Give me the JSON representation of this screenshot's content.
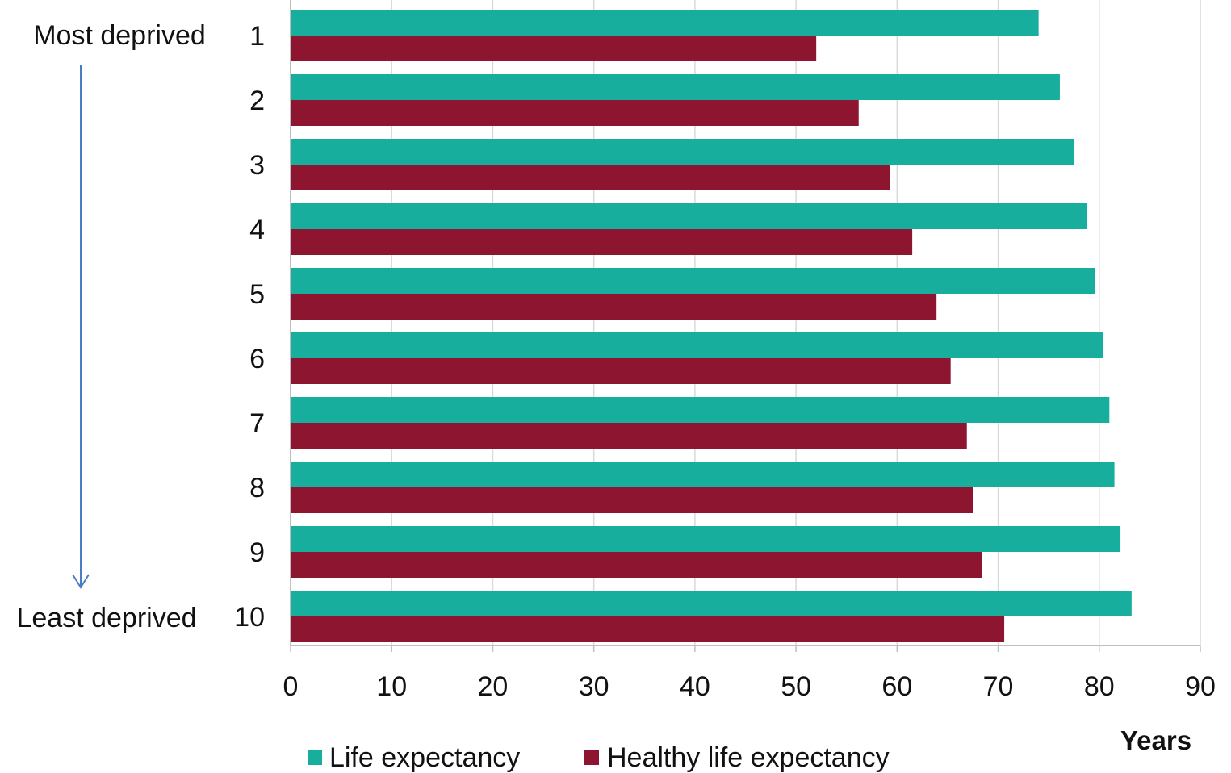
{
  "chart_data": {
    "type": "bar",
    "orientation": "horizontal",
    "categories": [
      "1",
      "2",
      "3",
      "4",
      "5",
      "6",
      "7",
      "8",
      "9",
      "10"
    ],
    "series": [
      {
        "name": "Life expectancy",
        "color": "#17ae9d",
        "values": [
          74.0,
          76.1,
          77.5,
          78.8,
          79.6,
          80.4,
          81.0,
          81.5,
          82.1,
          83.2
        ]
      },
      {
        "name": "Healthy life expectancy",
        "color": "#8e1530",
        "values": [
          52.0,
          56.2,
          59.3,
          61.5,
          63.9,
          65.3,
          66.9,
          67.5,
          68.4,
          70.6
        ]
      }
    ],
    "xlabel": "Years",
    "xlim": [
      0,
      90
    ],
    "xticks": [
      0,
      10,
      20,
      30,
      40,
      50,
      60,
      70,
      80,
      90
    ],
    "grid": true,
    "legend": "bottom-left",
    "annotations": {
      "top": "Most deprived",
      "bottom": "Least deprived"
    },
    "arrow_color": "#4a7cc4"
  }
}
